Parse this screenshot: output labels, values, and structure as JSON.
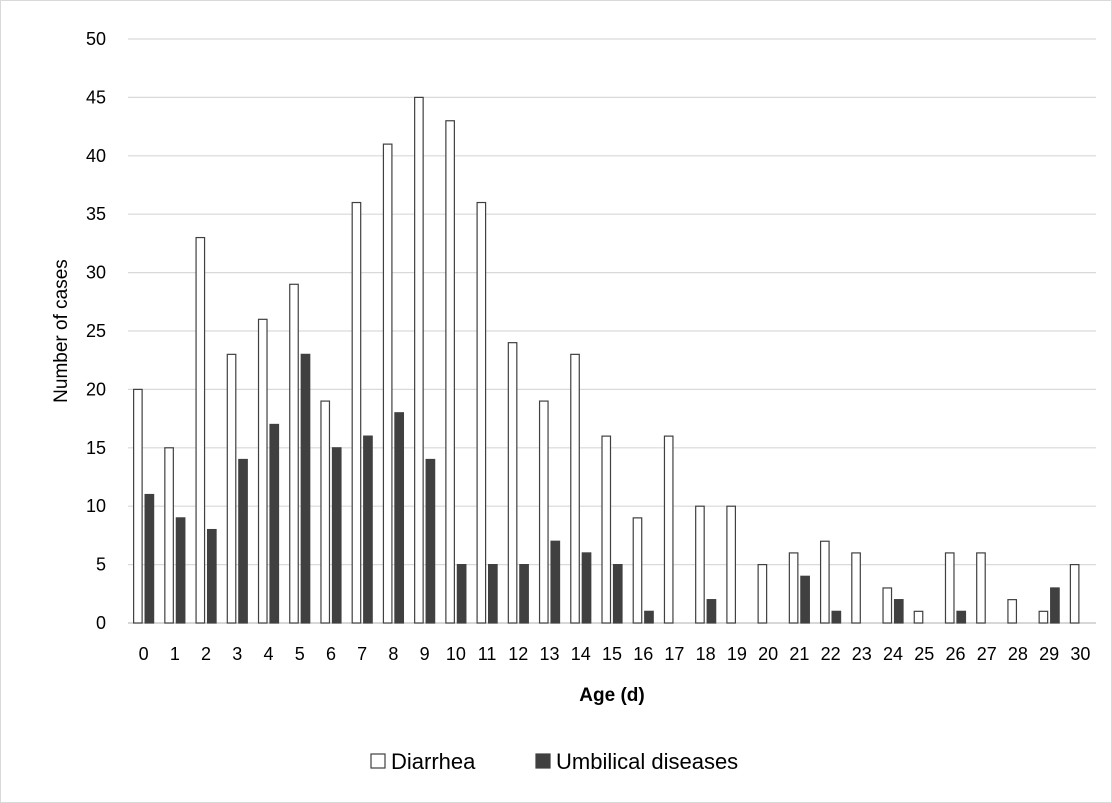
{
  "chart_data": {
    "type": "bar",
    "title": "",
    "xlabel": "Age (d)",
    "ylabel": "Number of cases",
    "ylim": [
      0,
      50
    ],
    "yticks": [
      0,
      5,
      10,
      15,
      20,
      25,
      30,
      35,
      40,
      45,
      50
    ],
    "grid": "horizontal",
    "legend_position": "bottom",
    "categories": [
      "0",
      "1",
      "2",
      "3",
      "4",
      "5",
      "6",
      "7",
      "8",
      "9",
      "10",
      "11",
      "12",
      "13",
      "14",
      "15",
      "16",
      "17",
      "18",
      "19",
      "20",
      "21",
      "22",
      "23",
      "24",
      "25",
      "26",
      "27",
      "28",
      "29",
      "30"
    ],
    "series": [
      {
        "name": "Diarrhea",
        "fill": "#ffffff",
        "stroke": "#404040",
        "values": [
          20,
          15,
          33,
          23,
          26,
          29,
          19,
          36,
          41,
          45,
          43,
          36,
          24,
          19,
          23,
          16,
          9,
          16,
          10,
          10,
          5,
          6,
          7,
          6,
          3,
          1,
          6,
          6,
          2,
          1,
          5
        ]
      },
      {
        "name": "Umbilical diseases",
        "fill": "#404040",
        "stroke": "#404040",
        "values": [
          11,
          9,
          8,
          14,
          17,
          23,
          15,
          16,
          18,
          14,
          5,
          5,
          5,
          7,
          6,
          5,
          1,
          0,
          2,
          0,
          0,
          4,
          1,
          0,
          2,
          0,
          1,
          0,
          0,
          3,
          0
        ]
      }
    ],
    "colors": {
      "gridline": "#d9d9d9",
      "axis": "#bfbfbf",
      "text": "#000000"
    }
  }
}
